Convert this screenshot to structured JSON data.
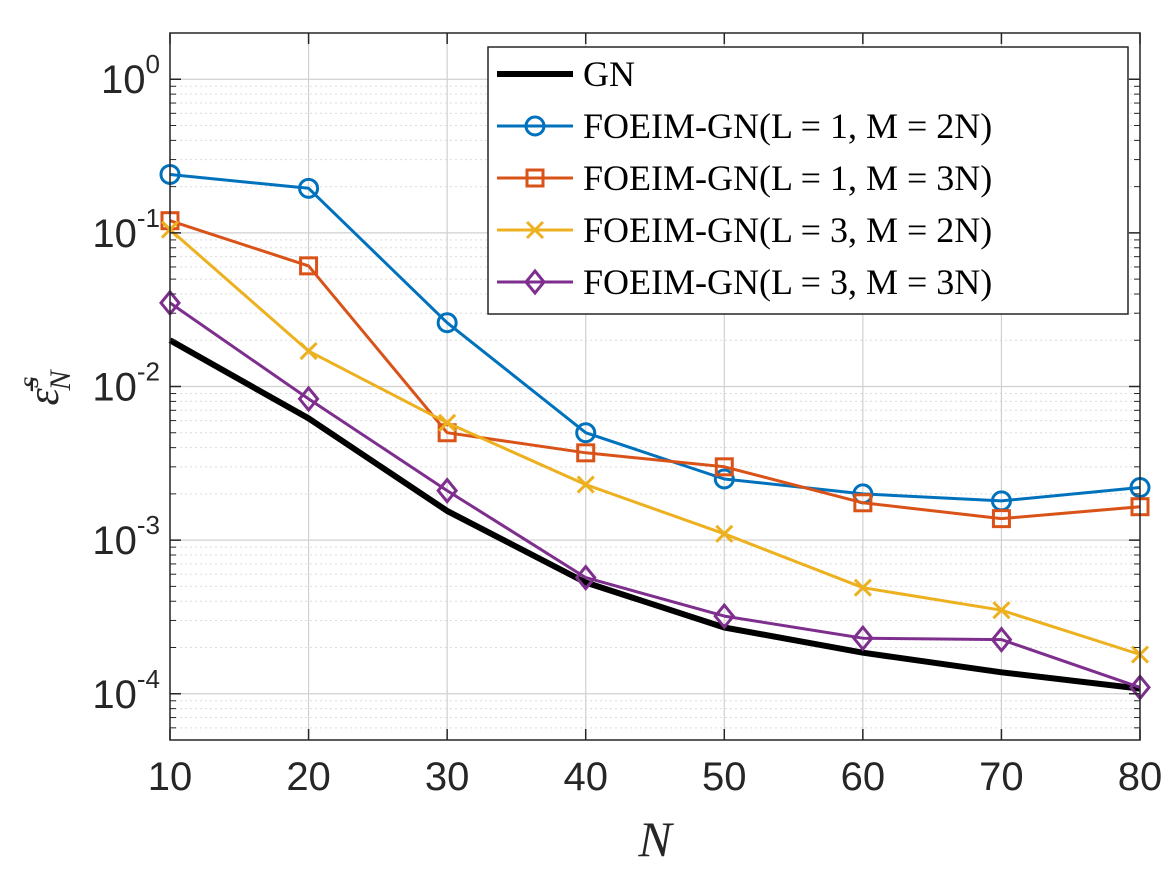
{
  "chart_data": {
    "type": "line",
    "xlabel": "N",
    "ylabel": "ε̄",
    "ylabel_sup": "s",
    "ylabel_sub": "N",
    "x": [
      10,
      20,
      30,
      40,
      50,
      60,
      70,
      80
    ],
    "xlim": [
      10,
      80
    ],
    "ylim": [
      5e-05,
      2
    ],
    "yscale": "log",
    "grid": true,
    "xticks": [
      "10",
      "20",
      "30",
      "40",
      "50",
      "60",
      "70",
      "80"
    ],
    "yticks": [
      {
        "base": "10",
        "exp": "0",
        "value": 1
      },
      {
        "base": "10",
        "exp": "-1",
        "value": 0.1
      },
      {
        "base": "10",
        "exp": "-2",
        "value": 0.01
      },
      {
        "base": "10",
        "exp": "-3",
        "value": 0.001
      },
      {
        "base": "10",
        "exp": "-4",
        "value": 0.0001
      }
    ],
    "legend_position": "top-right",
    "series": [
      {
        "name": "GN",
        "label": "GN",
        "color": "#000000",
        "marker": "none",
        "width": 6,
        "values": [
          0.02,
          0.0062,
          0.00155,
          0.00053,
          0.00027,
          0.000185,
          0.000138,
          0.000108
        ]
      },
      {
        "name": "FOEIM-GN(L=1,M=2N)",
        "label": "FOEIM-GN(L = 1, M = 2N)",
        "color": "#0072BD",
        "marker": "circle",
        "width": 3,
        "values": [
          0.24,
          0.195,
          0.026,
          0.005,
          0.0025,
          0.002,
          0.0018,
          0.0022
        ]
      },
      {
        "name": "FOEIM-GN(L=1,M=3N)",
        "label": "FOEIM-GN(L = 1, M = 3N)",
        "color": "#D95319",
        "marker": "square",
        "width": 3,
        "values": [
          0.12,
          0.061,
          0.005,
          0.0037,
          0.003,
          0.00175,
          0.00138,
          0.00165
        ]
      },
      {
        "name": "FOEIM-GN(L=3,M=2N)",
        "label": "FOEIM-GN(L = 3, M = 2N)",
        "color": "#EDB120",
        "marker": "x",
        "width": 3,
        "values": [
          0.105,
          0.017,
          0.0058,
          0.0023,
          0.0011,
          0.00049,
          0.00035,
          0.00018
        ]
      },
      {
        "name": "FOEIM-GN(L=3,M=3N)",
        "label": "FOEIM-GN(L = 3, M = 3N)",
        "color": "#7E2F8E",
        "marker": "diamond",
        "width": 3,
        "values": [
          0.035,
          0.0083,
          0.0021,
          0.00057,
          0.00032,
          0.00023,
          0.000225,
          0.00011
        ]
      }
    ]
  }
}
